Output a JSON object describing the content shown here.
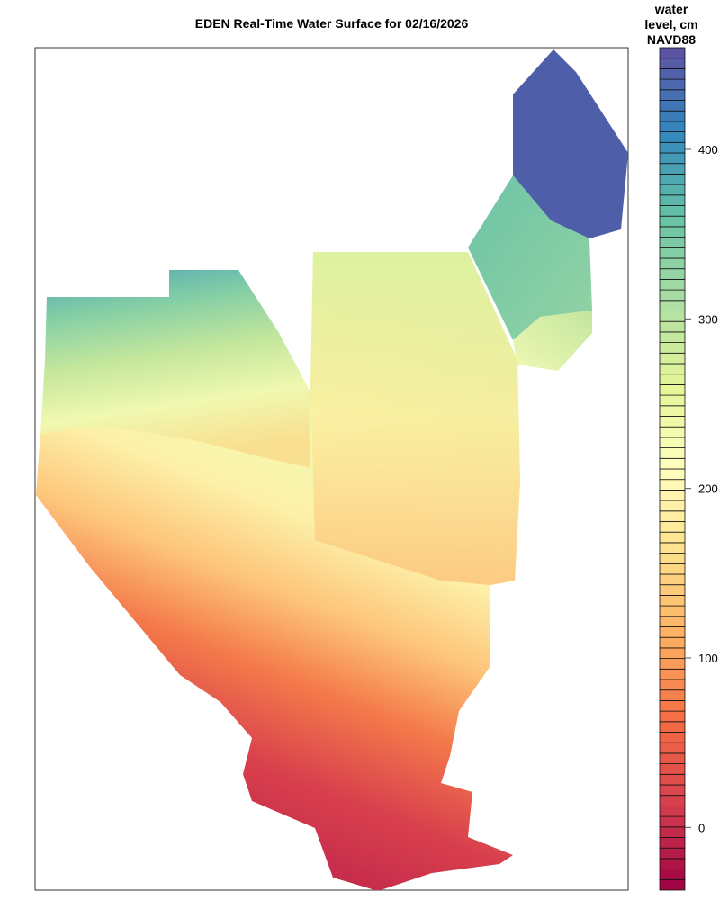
{
  "title": "EDEN Real-Time Water Surface for 02/16/2026",
  "colorbar": {
    "title_lines": [
      "water",
      "level, cm",
      "NAVD88"
    ],
    "min": -37,
    "max": 460,
    "band_count": 80,
    "ticks": [
      {
        "value": 0,
        "label": "0"
      },
      {
        "value": 100,
        "label": "100"
      },
      {
        "value": 200,
        "label": "200"
      },
      {
        "value": 300,
        "label": "300"
      },
      {
        "value": 400,
        "label": "400"
      }
    ],
    "palette": [
      "#9e0142",
      "#d53e4f",
      "#f46d43",
      "#fdae61",
      "#fee08b",
      "#ffffbf",
      "#e6f598",
      "#abdda4",
      "#66c2a5",
      "#3288bd",
      "#5e4fa2"
    ]
  }
}
